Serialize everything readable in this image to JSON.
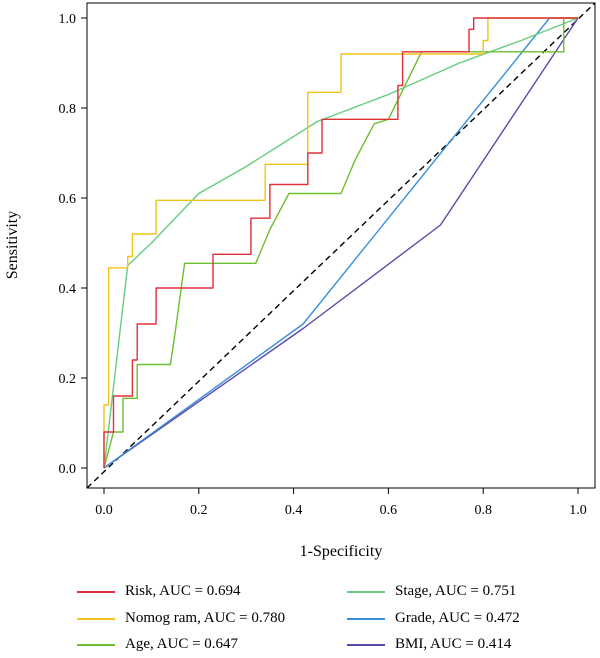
{
  "chart_data": {
    "type": "line",
    "xlabel": "1-Specificity",
    "ylabel": "Sensitivity",
    "xlim": [
      0,
      1
    ],
    "ylim": [
      0,
      1
    ],
    "xticks": [
      "0.0",
      "0.2",
      "0.4",
      "0.6",
      "0.8",
      "1.0"
    ],
    "yticks": [
      "0.0",
      "0.2",
      "0.4",
      "0.6",
      "0.8",
      "1.0"
    ],
    "grid": false,
    "legend_position": "bottom",
    "reference_line": {
      "x": [
        0,
        1
      ],
      "y": [
        0,
        1
      ],
      "style": "dashed",
      "color": "#000000"
    },
    "series": [
      {
        "name": "Risk, AUC = 0.694",
        "color": "#e0303a",
        "x": [
          0.0,
          0.0,
          0.02,
          0.02,
          0.06,
          0.06,
          0.07,
          0.07,
          0.11,
          0.11,
          0.23,
          0.23,
          0.31,
          0.31,
          0.35,
          0.35,
          0.43,
          0.43,
          0.46,
          0.46,
          0.62,
          0.62,
          0.63,
          0.63,
          0.77,
          0.77,
          0.78,
          0.78,
          1.0
        ],
        "y": [
          0.0,
          0.08,
          0.08,
          0.16,
          0.16,
          0.24,
          0.24,
          0.32,
          0.32,
          0.4,
          0.4,
          0.475,
          0.475,
          0.555,
          0.555,
          0.63,
          0.63,
          0.7,
          0.7,
          0.775,
          0.775,
          0.85,
          0.85,
          0.925,
          0.925,
          0.975,
          0.975,
          1.0,
          1.0
        ]
      },
      {
        "name": "Nomog ram, AUC = 0.780",
        "color": "#f0c419",
        "x": [
          0.0,
          0.0,
          0.01,
          0.01,
          0.05,
          0.05,
          0.06,
          0.06,
          0.11,
          0.11,
          0.34,
          0.34,
          0.43,
          0.43,
          0.5,
          0.5,
          0.66,
          0.66,
          0.8,
          0.8,
          0.81,
          0.81,
          1.0
        ],
        "y": [
          0.0,
          0.14,
          0.14,
          0.445,
          0.445,
          0.47,
          0.47,
          0.52,
          0.52,
          0.595,
          0.595,
          0.675,
          0.675,
          0.835,
          0.835,
          0.92,
          0.92,
          0.92,
          0.92,
          0.95,
          0.95,
          1.0,
          1.0
        ]
      },
      {
        "name": "Age, AUC = 0.647",
        "color": "#6cbf2e",
        "x": [
          0.0,
          0.02,
          0.04,
          0.04,
          0.07,
          0.07,
          0.14,
          0.15,
          0.17,
          0.32,
          0.35,
          0.39,
          0.5,
          0.53,
          0.57,
          0.6,
          0.67,
          0.97,
          0.97,
          1.0
        ],
        "y": [
          0.0,
          0.08,
          0.08,
          0.155,
          0.155,
          0.23,
          0.23,
          0.3,
          0.455,
          0.455,
          0.53,
          0.61,
          0.61,
          0.685,
          0.765,
          0.775,
          0.925,
          0.925,
          1.0,
          1.0
        ]
      },
      {
        "name": "Stage, AUC = 0.751",
        "color": "#66cc80",
        "x": [
          0.0,
          0.05,
          0.1,
          0.2,
          0.3,
          0.45,
          0.6,
          0.75,
          0.88,
          1.0
        ],
        "y": [
          0.0,
          0.45,
          0.5,
          0.61,
          0.67,
          0.77,
          0.83,
          0.9,
          0.95,
          1.0
        ]
      },
      {
        "name": "Grade, AUC = 0.472",
        "color": "#3a8fd8",
        "x": [
          0.0,
          0.42,
          0.94,
          1.0
        ],
        "y": [
          0.0,
          0.32,
          1.0,
          1.0
        ]
      },
      {
        "name": "BMI, AUC = 0.414",
        "color": "#5a4aa8",
        "x": [
          0.0,
          0.42,
          0.71,
          1.0
        ],
        "y": [
          0.0,
          0.31,
          0.54,
          1.0
        ]
      }
    ]
  }
}
